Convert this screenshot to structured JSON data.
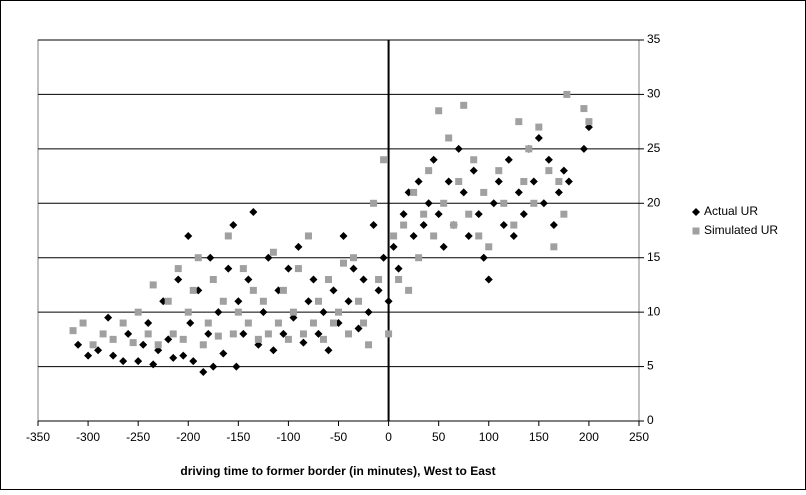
{
  "chart_data": {
    "type": "scatter",
    "x_label": "driving time to former border (in minutes), West to East",
    "xlim": [
      -350,
      250
    ],
    "xticks": [
      -350,
      -300,
      -250,
      -200,
      -150,
      -100,
      -50,
      0,
      50,
      100,
      150,
      200,
      250
    ],
    "ylim": [
      0,
      35
    ],
    "yticks": [
      0,
      5,
      10,
      15,
      20,
      25,
      30,
      35
    ],
    "y_axis_crosses": 0,
    "grid": true,
    "legend": "right",
    "series": [
      {
        "name": "Actual UR",
        "color": "#000000",
        "marker": "diamond",
        "x": [
          -310,
          -300,
          -290,
          -280,
          -275,
          -265,
          -260,
          -250,
          -245,
          -240,
          -235,
          -230,
          -225,
          -220,
          -215,
          -210,
          -205,
          -200,
          -198,
          -195,
          -190,
          -185,
          -180,
          -178,
          -175,
          -170,
          -165,
          -160,
          -155,
          -152,
          -150,
          -145,
          -140,
          -135,
          -130,
          -125,
          -120,
          -115,
          -110,
          -105,
          -100,
          -95,
          -90,
          -85,
          -80,
          -75,
          -70,
          -65,
          -60,
          -55,
          -50,
          -45,
          -40,
          -35,
          -30,
          -25,
          -20,
          -15,
          -10,
          -5,
          0,
          5,
          10,
          15,
          20,
          25,
          30,
          35,
          40,
          45,
          50,
          55,
          60,
          65,
          70,
          75,
          80,
          85,
          90,
          95,
          100,
          105,
          110,
          115,
          120,
          125,
          130,
          135,
          140,
          145,
          150,
          155,
          160,
          165,
          170,
          175,
          180,
          195,
          200
        ],
        "values": [
          7,
          6,
          6.5,
          9.5,
          6,
          5.5,
          8,
          5.5,
          7,
          9,
          5.2,
          6.5,
          11,
          7.5,
          5.8,
          13,
          6,
          17,
          9,
          5.5,
          12,
          4.5,
          8,
          15,
          5,
          10,
          6.2,
          14,
          18,
          5,
          11,
          8,
          13,
          19.2,
          7,
          10,
          15,
          6.5,
          12,
          8,
          14,
          9.5,
          16,
          7.2,
          11,
          13,
          8,
          10,
          6.5,
          12,
          9,
          17,
          11,
          14,
          8.5,
          13,
          10,
          18,
          12,
          15,
          11,
          16,
          14,
          19,
          21,
          17,
          22,
          18,
          20,
          24,
          19,
          16,
          22,
          18,
          25,
          21,
          17,
          23,
          19,
          15,
          13,
          20,
          22,
          18,
          24,
          17,
          21,
          19,
          25,
          22,
          26,
          20,
          24,
          18,
          21,
          23,
          22,
          25,
          27
        ]
      },
      {
        "name": "Simulated UR",
        "color": "#a0a0a0",
        "marker": "square",
        "x": [
          -315,
          -305,
          -295,
          -285,
          -275,
          -265,
          -255,
          -250,
          -240,
          -235,
          -230,
          -220,
          -215,
          -210,
          -205,
          -200,
          -195,
          -190,
          -185,
          -180,
          -175,
          -170,
          -165,
          -160,
          -155,
          -150,
          -145,
          -140,
          -135,
          -130,
          -125,
          -120,
          -115,
          -110,
          -105,
          -100,
          -95,
          -90,
          -85,
          -80,
          -75,
          -70,
          -65,
          -60,
          -55,
          -50,
          -45,
          -40,
          -35,
          -30,
          -25,
          -20,
          -15,
          -10,
          -5,
          0,
          5,
          10,
          15,
          20,
          25,
          30,
          35,
          40,
          45,
          50,
          55,
          60,
          65,
          70,
          75,
          80,
          85,
          90,
          95,
          100,
          110,
          115,
          125,
          130,
          135,
          140,
          145,
          150,
          160,
          165,
          170,
          175,
          178,
          195,
          200
        ],
        "values": [
          8.3,
          9,
          7,
          8,
          7.5,
          9,
          7.2,
          10,
          8,
          12.5,
          7,
          11,
          8,
          14,
          7.5,
          10,
          12,
          15,
          7,
          9,
          13,
          7.8,
          11,
          17,
          8,
          10,
          14,
          9,
          12,
          7.5,
          11,
          8,
          15.5,
          9,
          12,
          7.5,
          10,
          14,
          8,
          17,
          9,
          11,
          7.5,
          13,
          9,
          10,
          14.5,
          8,
          15,
          11,
          9,
          7,
          20,
          13,
          24,
          8,
          17,
          13,
          18,
          12,
          21,
          15,
          19,
          23,
          17,
          28.5,
          20,
          26,
          18,
          22,
          29,
          19,
          24,
          17,
          21,
          16,
          23,
          20,
          18,
          27.5,
          22,
          25,
          20,
          27,
          23,
          16,
          22,
          19,
          30,
          28.7,
          27.5
        ]
      }
    ]
  }
}
